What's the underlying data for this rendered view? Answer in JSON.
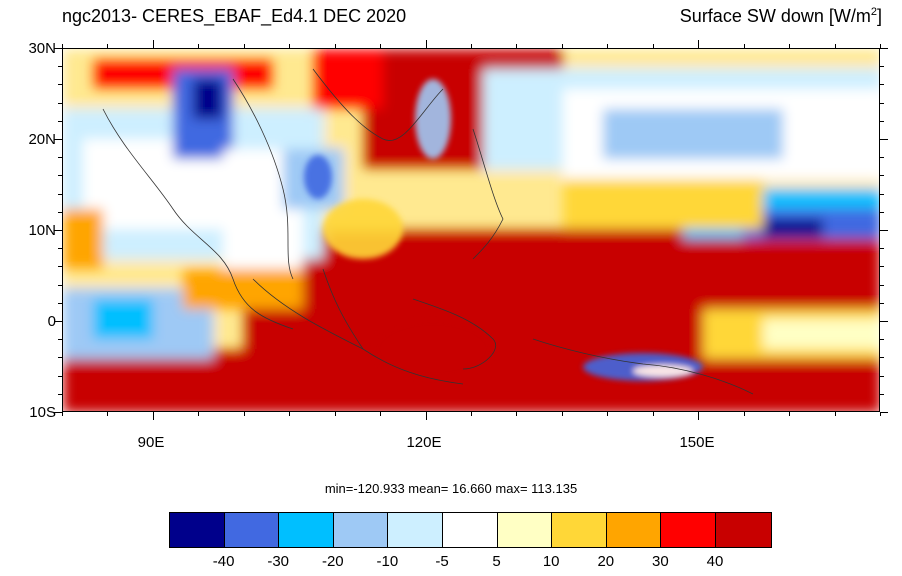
{
  "title_left": "ngc2013- CERES_EBAF_Ed4.1  DEC 2020",
  "title_right_text": "Surface SW down [W/m",
  "title_right_sup": "2",
  "title_right_end": "]",
  "y_axis_labels": [
    "30N",
    "20N",
    "10N",
    "0",
    "10S"
  ],
  "x_axis_labels": [
    "90E",
    "120E",
    "150E"
  ],
  "stats": "min=-120.933  mean=  16.660  max= 113.135",
  "colorbar": {
    "colors": [
      "#00008b",
      "#4169e1",
      "#00bfff",
      "#9ec9f5",
      "#cdefff",
      "#ffffff",
      "#ffffc4",
      "#ffd737",
      "#ffa500",
      "#ff0000",
      "#c80000"
    ],
    "labels": [
      "-40",
      "-30",
      "-20",
      "-10",
      "-5",
      "5",
      "10",
      "20",
      "30",
      "40"
    ]
  },
  "map_extent": {
    "lon_min": 80,
    "lon_max": 170,
    "lat_min": -10,
    "lat_max": 30
  }
}
